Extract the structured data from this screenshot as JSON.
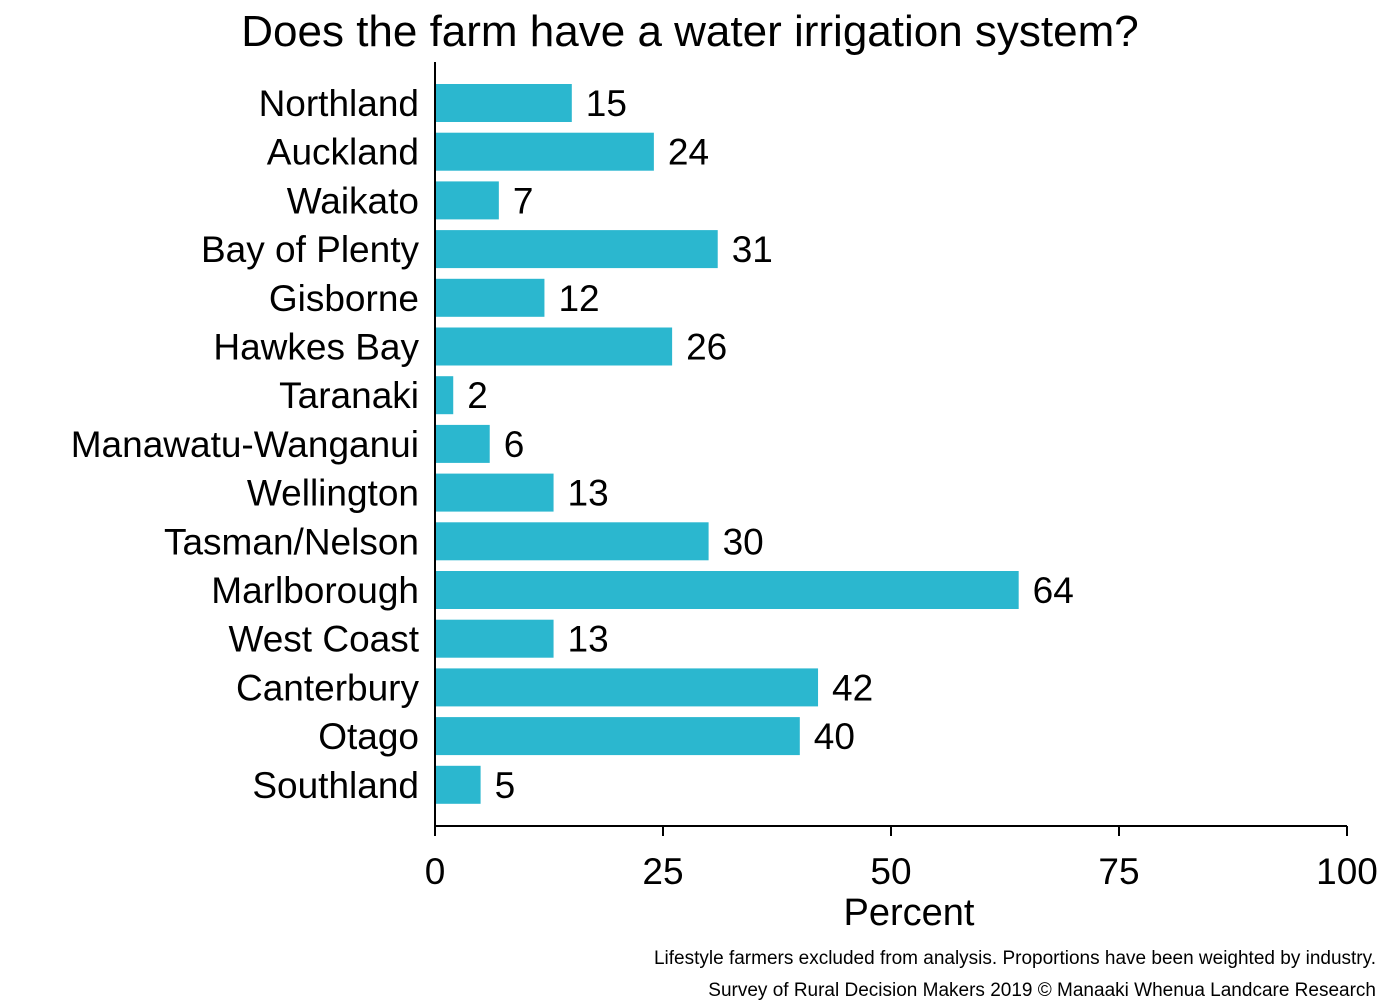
{
  "chart_data": {
    "type": "bar",
    "orientation": "horizontal",
    "title": "Does the farm have a water irrigation system?",
    "xlabel": "Percent",
    "ylabel": "",
    "xlim": [
      0,
      100
    ],
    "xticks": [
      0,
      25,
      50,
      75,
      100
    ],
    "grid": false,
    "bar_color": "#2bb7cf",
    "show_value_labels": true,
    "categories": [
      "Northland",
      "Auckland",
      "Waikato",
      "Bay of Plenty",
      "Gisborne",
      "Hawkes Bay",
      "Taranaki",
      "Manawatu-Wanganui",
      "Wellington",
      "Tasman/Nelson",
      "Marlborough",
      "West Coast",
      "Canterbury",
      "Otago",
      "Southland"
    ],
    "values": [
      15,
      24,
      7,
      31,
      12,
      26,
      2,
      6,
      13,
      30,
      64,
      13,
      42,
      40,
      5
    ]
  },
  "footnotes": {
    "line1": "Lifestyle farmers excluded from analysis. Proportions have been weighted by industry.",
    "line2": "Survey of Rural Decision Makers 2019 © Manaaki Whenua Landcare Research"
  }
}
